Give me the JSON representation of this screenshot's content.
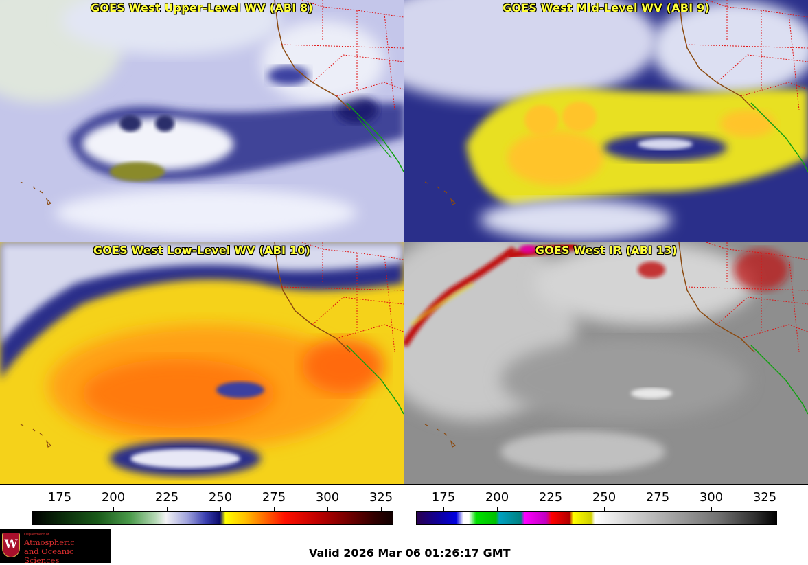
{
  "panels": [
    {
      "title": "GOES West Upper-Level WV (ABI 8)",
      "colorbar": "wv"
    },
    {
      "title": "GOES West Mid-Level WV (ABI 9)",
      "colorbar": "wv"
    },
    {
      "title": "GOES West Low-Level WV (ABI 10)",
      "colorbar": "wv"
    },
    {
      "title": "GOES West IR (ABI 13)",
      "colorbar": "ir"
    }
  ],
  "colorbars": {
    "wv": {
      "ticks": [
        "175",
        "200",
        "225",
        "250",
        "275",
        "300",
        "325"
      ]
    },
    "ir": {
      "ticks": [
        "175",
        "200",
        "225",
        "250",
        "275",
        "300",
        "325"
      ]
    }
  },
  "logo": {
    "crest_letter": "W",
    "dept": "Department of",
    "name_line1": "Atmospheric",
    "name_line2": "and Oceanic Sciences"
  },
  "valid_time": "Valid 2026 Mar 06 01:26:17 GMT",
  "colors": {
    "title_text": "#ffff3a",
    "state_borders": "#e01010",
    "coastline": "#8b4a10",
    "mexico_border": "#10a010"
  }
}
